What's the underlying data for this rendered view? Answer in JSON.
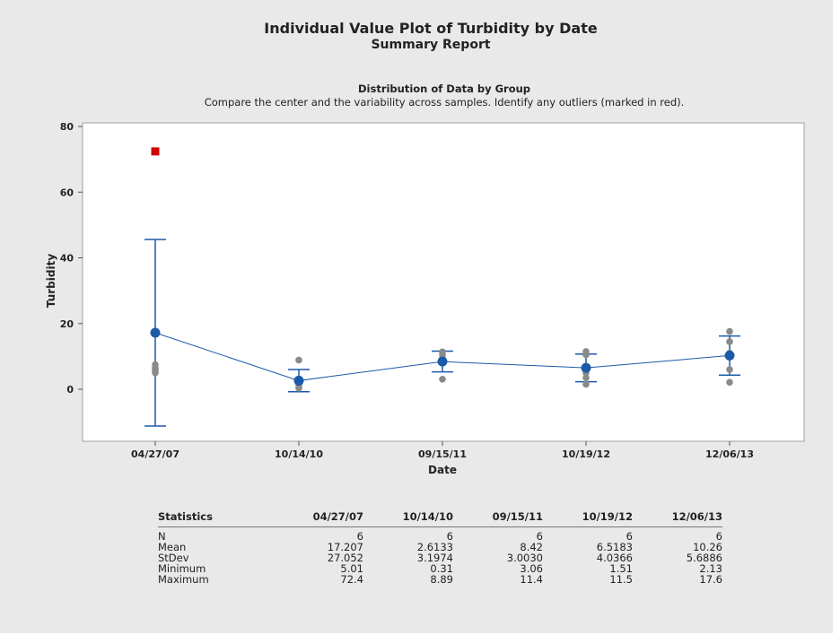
{
  "header": {
    "title": "Individual Value Plot of Turbidity by Date",
    "subtitle": "Summary Report"
  },
  "section": {
    "title": "Distribution of Data by Group",
    "description": "Compare the center and the variability across samples. Identify any outliers (marked in red)."
  },
  "chart_data": {
    "type": "scatter",
    "xlabel": "Date",
    "ylabel": "Turbidity",
    "categories": [
      "04/27/07",
      "10/14/10",
      "09/15/11",
      "10/19/12",
      "12/06/13"
    ],
    "ylim": [
      -15,
      80
    ],
    "yticks": [
      0,
      20,
      40,
      60,
      80
    ],
    "grid": false,
    "points": [
      [
        5.01,
        5.5,
        6.0,
        6.5,
        7.5
      ],
      [
        0.31,
        0.8,
        1.5,
        2.0,
        2.5,
        8.89
      ],
      [
        3.06,
        8.0,
        8.5,
        9.5,
        10.5,
        11.4
      ],
      [
        1.51,
        3.5,
        5.0,
        6.5,
        10.5,
        11.5
      ],
      [
        2.13,
        6.0,
        10.0,
        11.0,
        14.5,
        17.6
      ]
    ],
    "outliers": [
      [
        72.4
      ],
      [],
      [],
      [],
      []
    ],
    "means": [
      17.207,
      2.6133,
      8.42,
      6.5183,
      10.26
    ],
    "intervals": [
      [
        -11.2,
        45.6
      ],
      [
        -0.75,
        6.0
      ],
      [
        5.3,
        11.6
      ],
      [
        2.3,
        10.7
      ],
      [
        4.3,
        16.2
      ]
    ],
    "colors": {
      "points": "#8a8a8a",
      "mean": "#1a5aa8",
      "line": "#1a5aa8",
      "outlier": "#d10000"
    }
  },
  "stats": {
    "header": [
      "Statistics",
      "04/27/07",
      "10/14/10",
      "09/15/11",
      "10/19/12",
      "12/06/13"
    ],
    "rows": [
      [
        "N",
        "6",
        "6",
        "6",
        "6",
        "6"
      ],
      [
        "Mean",
        "17.207",
        "2.6133",
        "8.42",
        "6.5183",
        "10.26"
      ],
      [
        "StDev",
        "27.052",
        "3.1974",
        "3.0030",
        "4.0366",
        "5.6886"
      ],
      [
        "Minimum",
        "5.01",
        "0.31",
        "3.06",
        "1.51",
        "2.13"
      ],
      [
        "Maximum",
        "72.4",
        "8.89",
        "11.4",
        "11.5",
        "17.6"
      ]
    ]
  }
}
